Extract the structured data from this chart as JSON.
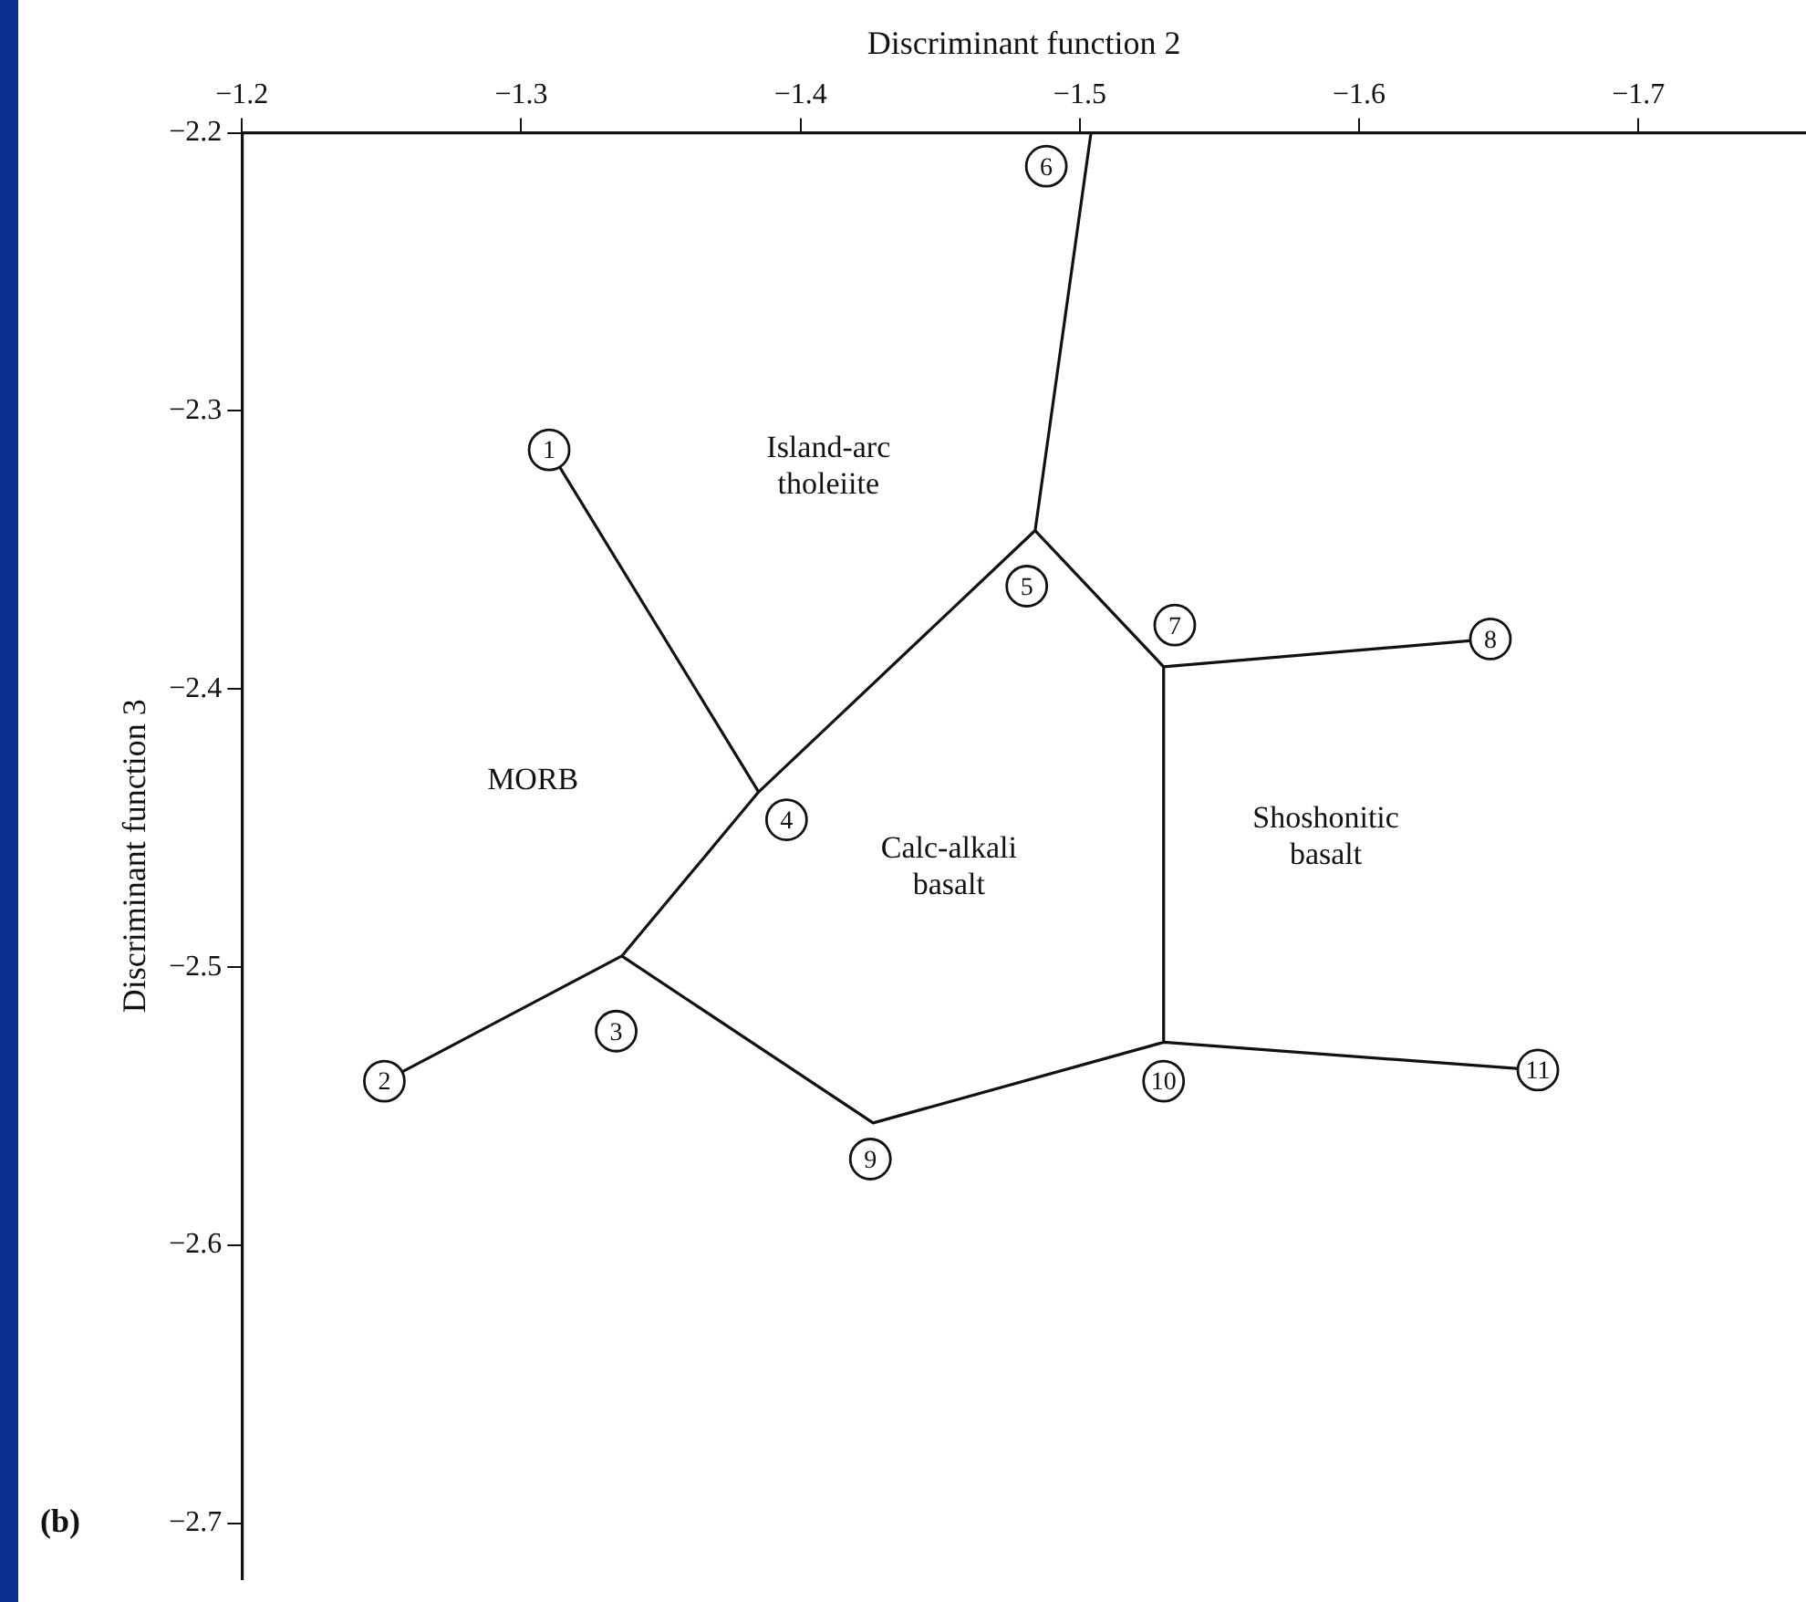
{
  "chart_data": {
    "type": "line",
    "xlabel": "Discriminant function 2",
    "ylabel": "Discriminant function 3",
    "xlim": [
      -1.2,
      -1.76
    ],
    "xticks": [
      -1.2,
      -1.3,
      -1.4,
      -1.5,
      -1.6,
      -1.7
    ],
    "ylim": [
      -2.72,
      -2.2
    ],
    "yticks": [
      -2.2,
      -2.3,
      -2.4,
      -2.5,
      -2.6,
      -2.7
    ],
    "grid": false,
    "legend": false,
    "line_style": "solid",
    "series": [
      {
        "color": "#111111",
        "x": [
          -1.251,
          -1.336,
          -1.385,
          -1.484,
          -1.504
        ],
        "values": [
          -2.541,
          -2.496,
          -2.437,
          -2.343,
          -2.2
        ]
      },
      {
        "color": "#111111",
        "x": [
          -1.31,
          -1.385
        ],
        "values": [
          -2.314,
          -2.437
        ]
      },
      {
        "color": "#111111",
        "x": [
          -1.484,
          -1.53,
          -1.647
        ],
        "values": [
          -2.343,
          -2.392,
          -2.382
        ]
      },
      {
        "color": "#111111",
        "x": [
          -1.336,
          -1.426,
          -1.53,
          -1.664
        ],
        "values": [
          -2.496,
          -2.556,
          -2.527,
          -2.537
        ]
      },
      {
        "color": "#111111",
        "x": [
          -1.53,
          -1.53
        ],
        "values": [
          -2.392,
          -2.527
        ]
      }
    ],
    "annotations": [
      {
        "text": "1",
        "x": -1.31,
        "y": -2.314
      },
      {
        "text": "2",
        "x": -1.251,
        "y": -2.541
      },
      {
        "text": "3",
        "x": -1.334,
        "y": -2.523
      },
      {
        "text": "4",
        "x": -1.395,
        "y": -2.447
      },
      {
        "text": "5",
        "x": -1.481,
        "y": -2.363
      },
      {
        "text": "6",
        "x": -1.488,
        "y": -2.212
      },
      {
        "text": "7",
        "x": -1.534,
        "y": -2.377
      },
      {
        "text": "8",
        "x": -1.647,
        "y": -2.382
      },
      {
        "text": "9",
        "x": -1.425,
        "y": -2.569
      },
      {
        "text": "10",
        "x": -1.53,
        "y": -2.541
      },
      {
        "text": "11",
        "x": -1.664,
        "y": -2.537
      },
      "Island-arc\ntholeiite",
      "MORB",
      "Calc-alkali\nbasalt",
      "Shoshonitic\nbasalt",
      "(b)"
    ]
  }
}
